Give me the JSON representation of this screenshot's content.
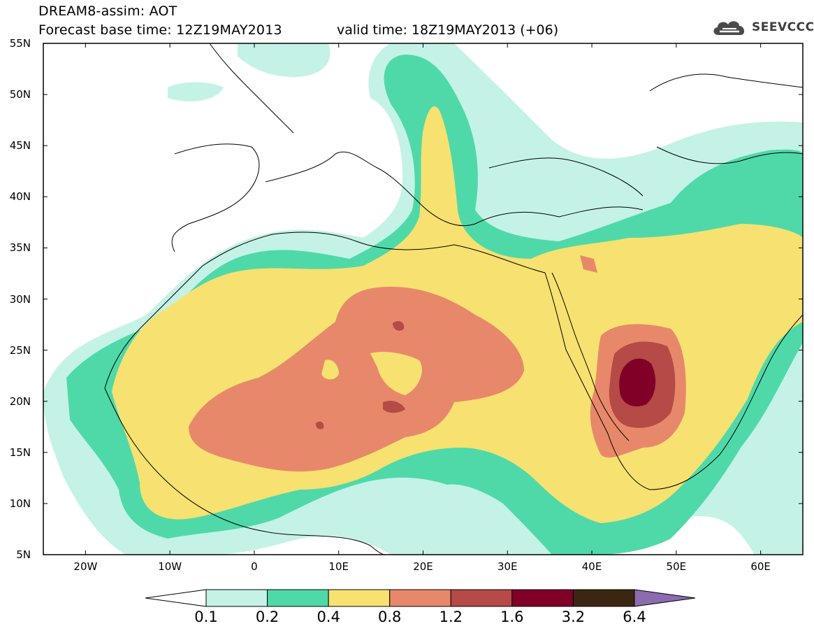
{
  "header": {
    "title_line1": "DREAM8-assim: AOT",
    "title_line2": "Forecast base time: 12Z19MAY2013",
    "valid_time": "valid time: 18Z19MAY2013 (+06)",
    "logo_text": "SEEVCCC"
  },
  "map": {
    "lon_range": [
      -25,
      65
    ],
    "lat_range": [
      5,
      55
    ],
    "lat_labels": [
      "55N",
      "50N",
      "45N",
      "40N",
      "35N",
      "30N",
      "25N",
      "20N",
      "15N",
      "10N",
      "5N"
    ],
    "lon_labels": [
      "20W",
      "10W",
      "0",
      "10E",
      "20E",
      "30E",
      "40E",
      "50E",
      "60E"
    ]
  },
  "colorbar": {
    "labels": [
      "0.1",
      "0.2",
      "0.4",
      "0.8",
      "1.2",
      "1.6",
      "3.2",
      "6.4"
    ],
    "colors": [
      "#ffffff",
      "#c4f2e6",
      "#4fd9a9",
      "#f7e170",
      "#e8886a",
      "#b54a46",
      "#800028",
      "#3b2612",
      "#8c6bae"
    ]
  }
}
